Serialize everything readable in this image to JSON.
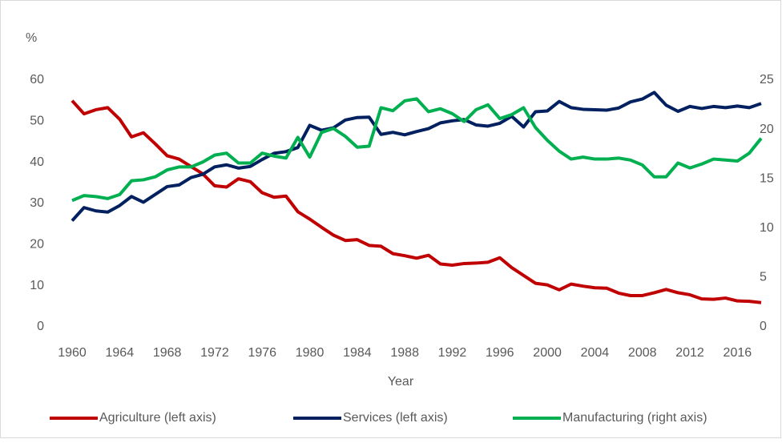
{
  "chart_data": {
    "type": "line",
    "ylabel": "%",
    "xlabel": "Year",
    "x": [
      1960,
      1961,
      1962,
      1963,
      1964,
      1965,
      1966,
      1967,
      1968,
      1969,
      1970,
      1971,
      1972,
      1973,
      1974,
      1975,
      1976,
      1977,
      1978,
      1979,
      1980,
      1981,
      1982,
      1983,
      1984,
      1985,
      1986,
      1987,
      1988,
      1989,
      1990,
      1991,
      1992,
      1993,
      1994,
      1995,
      1996,
      1997,
      1998,
      1999,
      2000,
      2001,
      2002,
      2003,
      2004,
      2005,
      2006,
      2007,
      2008,
      2009,
      2010,
      2011,
      2012,
      2013,
      2014,
      2015,
      2016,
      2017,
      2018
    ],
    "series": [
      {
        "name": "Agriculture (left axis)",
        "color": "#c00000",
        "axis": "y",
        "values": [
          55,
          51.8,
          52.8,
          53.3,
          50.5,
          46.2,
          47.2,
          44.5,
          41.6,
          40.8,
          39,
          37.2,
          34.3,
          34,
          36,
          35.3,
          32.6,
          31.5,
          31.8,
          28,
          26.2,
          24.2,
          22.3,
          21,
          21.2,
          19.8,
          19.6,
          17.8,
          17.3,
          16.7,
          17.4,
          15.3,
          15,
          15.4,
          15.5,
          15.7,
          16.8,
          14.4,
          12.5,
          10.6,
          10.2,
          9,
          10.4,
          9.9,
          9.5,
          9.4,
          8.2,
          7.6,
          7.6,
          8.3,
          9.1,
          8.3,
          7.8,
          6.8,
          6.7,
          7,
          6.3,
          6.2,
          5.9
        ]
      },
      {
        "name": "Services (left axis)",
        "color": "#002060",
        "axis": "y",
        "values": [
          25.8,
          29,
          28.2,
          27.9,
          29.5,
          31.7,
          30.3,
          32.2,
          34.1,
          34.5,
          36.3,
          37.1,
          38.9,
          39.4,
          38.6,
          39,
          40.7,
          42.2,
          42.6,
          43.6,
          49,
          47.8,
          48.4,
          50.3,
          50.9,
          51,
          46.8,
          47.3,
          46.7,
          47.5,
          48.2,
          49.6,
          50.1,
          50.4,
          49.1,
          48.8,
          49.5,
          51.2,
          48.6,
          52.3,
          52.5,
          54.8,
          53.3,
          52.9,
          52.8,
          52.7,
          53.2,
          54.7,
          55.4,
          57,
          53.9,
          52.4,
          53.6,
          53.1,
          53.6,
          53.3,
          53.7,
          53.3,
          54.3
        ]
      },
      {
        "name": "Manufacturing (right axis)",
        "color": "#00b050",
        "axis": "y2",
        "values": [
          12.8,
          13.3,
          13.2,
          13,
          13.4,
          14.8,
          14.9,
          15.2,
          15.9,
          16.2,
          16.2,
          16.7,
          17.4,
          17.6,
          16.6,
          16.6,
          17.6,
          17.3,
          17.1,
          19.2,
          17.2,
          19.7,
          20.1,
          19.3,
          18.2,
          18.3,
          22.2,
          21.9,
          22.9,
          23.1,
          21.8,
          22.1,
          21.6,
          20.8,
          22,
          22.5,
          21.1,
          21.5,
          22.2,
          20.2,
          18.9,
          17.8,
          17,
          17.2,
          17,
          17,
          17.1,
          16.9,
          16.4,
          15.2,
          15.2,
          16.6,
          16.1,
          16.5,
          17,
          16.9,
          16.8,
          17.6,
          19.1
        ]
      }
    ],
    "xlim": [
      1960,
      2018
    ],
    "xticks": [
      1960,
      1964,
      1968,
      1972,
      1976,
      1980,
      1984,
      1988,
      1992,
      1996,
      2000,
      2004,
      2008,
      2012,
      2016
    ],
    "ylim": [
      0,
      60
    ],
    "yticks": [
      0,
      10,
      20,
      30,
      40,
      50,
      60
    ],
    "y2lim": [
      0,
      25
    ],
    "y2ticks": [
      0,
      5,
      10,
      15,
      20,
      25
    ],
    "legend": "bottom"
  }
}
